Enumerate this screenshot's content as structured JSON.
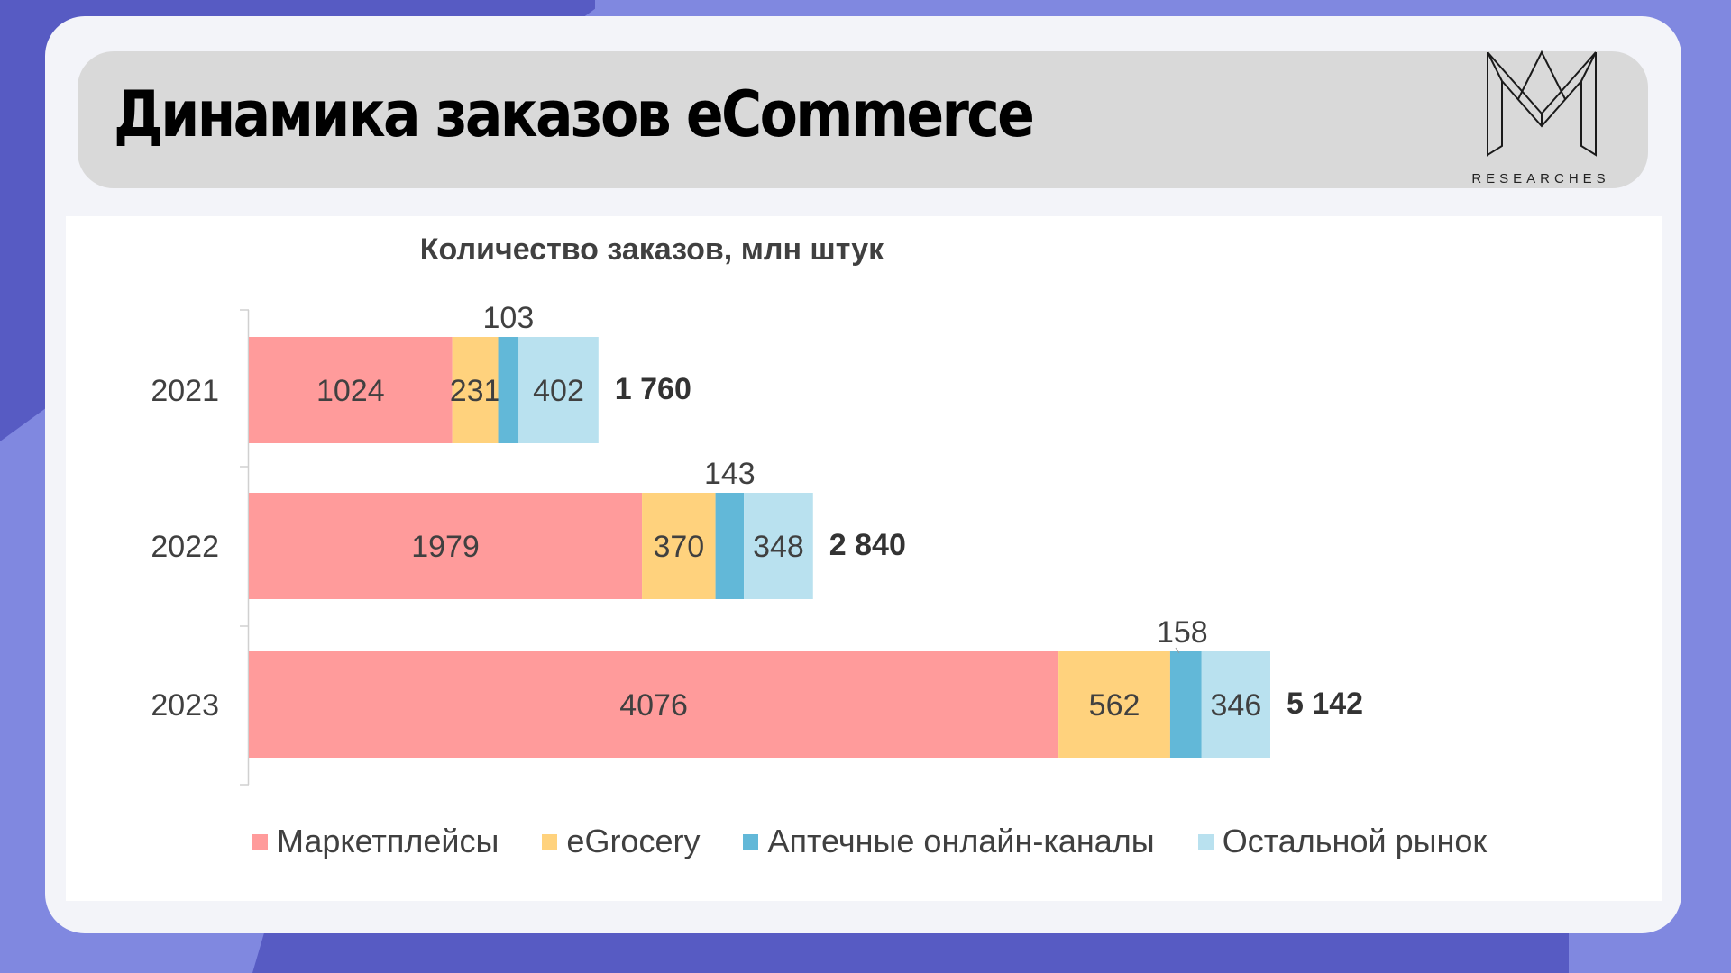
{
  "slide": {
    "title": "Динамика заказов eCommerce",
    "logo_text": "RESEARCHES",
    "logo_icon": "m-monogram-icon"
  },
  "colors": {
    "background": "#8088e0",
    "accent_dark": "#575bc3",
    "series": [
      "#ff9b9b",
      "#ffd27d",
      "#62b8d8",
      "#b9e1ef"
    ]
  },
  "chart_data": {
    "type": "bar",
    "orientation": "horizontal",
    "stacked": true,
    "title": "Количество заказов, млн штук",
    "categories": [
      "2021",
      "2022",
      "2023"
    ],
    "series": [
      {
        "name": "Маркетплейсы",
        "values": [
          1024,
          1979,
          4076
        ]
      },
      {
        "name": "eGrocery",
        "values": [
          231,
          370,
          562
        ]
      },
      {
        "name": "Аптечные онлайн-каналы",
        "values": [
          103,
          143,
          158
        ]
      },
      {
        "name": "Остальной рынок",
        "values": [
          402,
          348,
          346
        ]
      }
    ],
    "totals": [
      "1 760",
      "2 840",
      "5 142"
    ],
    "xlim": [
      0,
      5142
    ],
    "grid": false,
    "legend": "bottom"
  }
}
